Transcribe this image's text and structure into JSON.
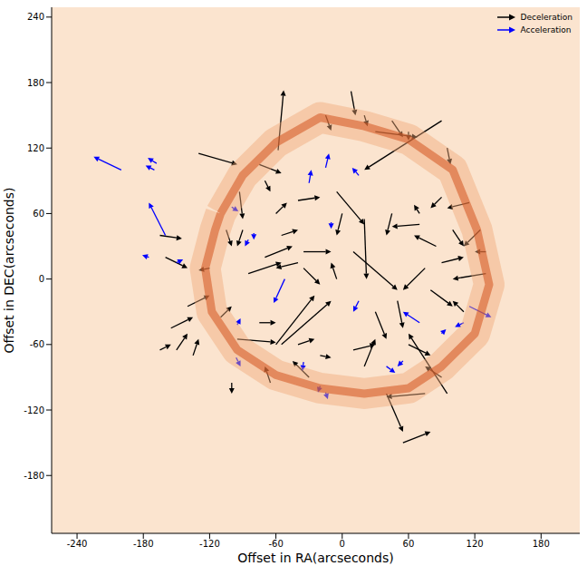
{
  "chart_data": {
    "type": "vector",
    "xlabel": "Offset in RA(arcseconds)",
    "ylabel": "Offset in DEC(arcseconds)",
    "xlim": [
      -263,
      215
    ],
    "ylim": [
      -233,
      249
    ],
    "xticks": [
      -240,
      -180,
      -120,
      -60,
      0,
      60,
      120,
      180
    ],
    "yticks": [
      -180,
      -120,
      -60,
      0,
      60,
      120,
      180,
      240
    ],
    "grid": false,
    "legend": "upper right",
    "remnant_rim": [
      [
        -110,
        60
      ],
      [
        -90,
        95
      ],
      [
        -60,
        125
      ],
      [
        -20,
        148
      ],
      [
        20,
        140
      ],
      [
        60,
        128
      ],
      [
        100,
        100
      ],
      [
        122,
        45
      ],
      [
        133,
        -5
      ],
      [
        120,
        -50
      ],
      [
        90,
        -80
      ],
      [
        60,
        -100
      ],
      [
        20,
        -105
      ],
      [
        -20,
        -100
      ],
      [
        -60,
        -88
      ],
      [
        -95,
        -65
      ],
      [
        -118,
        -30
      ],
      [
        -124,
        10
      ],
      [
        -115,
        45
      ],
      [
        -110,
        60
      ]
    ],
    "series": [
      {
        "name": "Deceleration",
        "color": "#000000",
        "arrows": [
          [
            -58,
            118,
            -53,
            173
          ],
          [
            -15,
            150,
            -10,
            136
          ],
          [
            8,
            172,
            12,
            150
          ],
          [
            20,
            150,
            23,
            140
          ],
          [
            60,
            135,
            60,
            127
          ],
          [
            45,
            145,
            55,
            130
          ],
          [
            30,
            135,
            68,
            130
          ],
          [
            90,
            145,
            20,
            100
          ],
          [
            95,
            120,
            98,
            105
          ],
          [
            -130,
            115,
            -95,
            105
          ],
          [
            -75,
            105,
            -55,
            97
          ],
          [
            -70,
            90,
            -65,
            80
          ],
          [
            -40,
            72,
            -20,
            75
          ],
          [
            -5,
            80,
            20,
            50
          ],
          [
            -93,
            80,
            -90,
            55
          ],
          [
            -60,
            60,
            -50,
            70
          ],
          [
            90,
            75,
            80,
            65
          ],
          [
            115,
            70,
            95,
            65
          ],
          [
            70,
            60,
            65,
            68
          ],
          [
            -105,
            45,
            -100,
            30
          ],
          [
            -90,
            45,
            -95,
            30
          ],
          [
            -165,
            40,
            -145,
            37
          ],
          [
            -160,
            20,
            -140,
            10
          ],
          [
            -120,
            10,
            -130,
            8
          ],
          [
            -55,
            40,
            -40,
            45
          ],
          [
            -35,
            25,
            -10,
            25
          ],
          [
            -40,
            15,
            -60,
            10
          ],
          [
            -85,
            5,
            -55,
            15
          ],
          [
            -70,
            20,
            -45,
            30
          ],
          [
            0,
            60,
            -5,
            40
          ],
          [
            20,
            55,
            22,
            0
          ],
          [
            45,
            60,
            40,
            40
          ],
          [
            70,
            50,
            45,
            48
          ],
          [
            85,
            30,
            65,
            40
          ],
          [
            125,
            45,
            110,
            30
          ],
          [
            100,
            45,
            110,
            30
          ],
          [
            130,
            25,
            120,
            25
          ],
          [
            130,
            5,
            100,
            0
          ],
          [
            90,
            15,
            110,
            20
          ],
          [
            75,
            10,
            55,
            -10
          ],
          [
            10,
            25,
            50,
            -10
          ],
          [
            -5,
            0,
            -10,
            15
          ],
          [
            -35,
            10,
            -20,
            -5
          ],
          [
            -60,
            -60,
            -25,
            -15
          ],
          [
            -55,
            -60,
            -10,
            -20
          ],
          [
            -95,
            -55,
            -60,
            -58
          ],
          [
            -75,
            -40,
            -60,
            -40
          ],
          [
            -140,
            -25,
            -120,
            -15
          ],
          [
            -155,
            -45,
            -135,
            -35
          ],
          [
            -135,
            -70,
            -130,
            -55
          ],
          [
            -150,
            -65,
            -140,
            -50
          ],
          [
            -165,
            -65,
            -155,
            -60
          ],
          [
            -110,
            -35,
            -100,
            -25
          ],
          [
            -100,
            -95,
            -100,
            -105
          ],
          [
            -65,
            -95,
            -70,
            -80
          ],
          [
            -30,
            -90,
            -45,
            -75
          ],
          [
            -40,
            -60,
            -25,
            -55
          ],
          [
            -20,
            -70,
            -10,
            -72
          ],
          [
            20,
            -80,
            30,
            -55
          ],
          [
            10,
            -65,
            30,
            -60
          ],
          [
            40,
            -105,
            55,
            -140
          ],
          [
            95,
            -105,
            60,
            -50
          ],
          [
            75,
            -105,
            40,
            -108
          ],
          [
            55,
            -150,
            80,
            -140
          ],
          [
            90,
            -90,
            75,
            -80
          ],
          [
            60,
            -60,
            80,
            -70
          ],
          [
            110,
            -30,
            100,
            -20
          ],
          [
            50,
            -20,
            55,
            -45
          ],
          [
            30,
            -30,
            40,
            -55
          ],
          [
            80,
            -10,
            100,
            -25
          ]
        ]
      },
      {
        "name": "Acceleration",
        "color": "#0000ff",
        "arrows": [
          [
            -200,
            100,
            -225,
            112
          ],
          [
            -168,
            106,
            -176,
            111
          ],
          [
            -170,
            100,
            -178,
            104
          ],
          [
            -160,
            40,
            -175,
            70
          ],
          [
            -175,
            20,
            -181,
            22
          ],
          [
            -150,
            15,
            -144,
            18
          ],
          [
            -30,
            88,
            -28,
            100
          ],
          [
            -15,
            102,
            -12,
            115
          ],
          [
            15,
            95,
            9,
            102
          ],
          [
            -52,
            0,
            -62,
            -22
          ],
          [
            115,
            -25,
            135,
            -35
          ],
          [
            110,
            -40,
            102,
            -44
          ],
          [
            70,
            -40,
            55,
            -30
          ],
          [
            -95,
            -42,
            -92,
            -36
          ],
          [
            -96,
            -72,
            -92,
            -80
          ],
          [
            -35,
            -76,
            -36,
            -84
          ],
          [
            -20,
            -98,
            -22,
            -104
          ],
          [
            -15,
            -104,
            -13,
            -110
          ],
          [
            40,
            -80,
            48,
            -86
          ],
          [
            55,
            -75,
            50,
            -80
          ],
          [
            15,
            -20,
            10,
            -30
          ],
          [
            -100,
            66,
            -94,
            62
          ],
          [
            -80,
            42,
            -80,
            36
          ],
          [
            -85,
            36,
            -88,
            30
          ],
          [
            -10,
            52,
            -10,
            46
          ],
          [
            90,
            -50,
            94,
            -46
          ]
        ]
      }
    ]
  }
}
